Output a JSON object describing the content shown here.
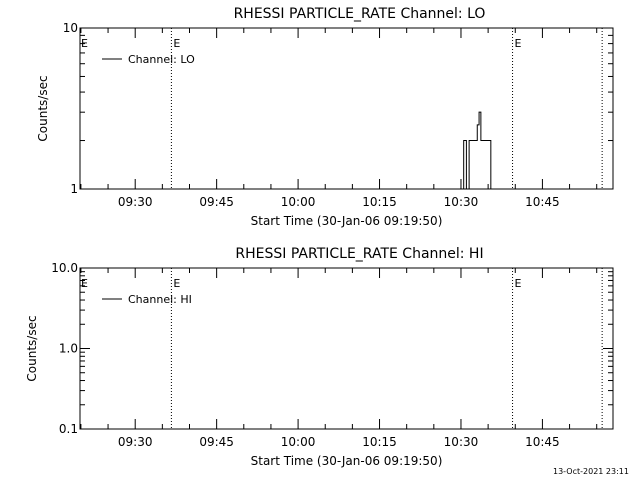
{
  "footer_timestamp": "13-Oct-2021 23:11",
  "colors": {
    "line": "#000000",
    "background": "#ffffff"
  },
  "chart_data": [
    {
      "type": "line",
      "title": "RHESSI PARTICLE_RATE Channel: LO",
      "xlabel": "Start Time (30-Jan-06 09:19:50)",
      "ylabel": "Counts/sec",
      "yscale": "log",
      "ylim": [
        1,
        10
      ],
      "xlim": [
        "09:19:50",
        "10:58:00"
      ],
      "x_ticks": [
        "09:30",
        "09:45",
        "10:00",
        "10:15",
        "10:30",
        "10:45"
      ],
      "y_ticks": [
        "1",
        "10"
      ],
      "legend": {
        "label": "Channel: LO",
        "position": "top-left"
      },
      "event_lines": [
        {
          "time": "09:36:40",
          "label": "E"
        },
        {
          "time": "10:39:30",
          "label": "E"
        },
        {
          "time": "10:56:00",
          "label": ""
        }
      ],
      "series": [
        {
          "name": "Channel: LO",
          "x": [
            "10:30:00",
            "10:30:30",
            "10:31:00",
            "10:31:30",
            "10:32:00",
            "10:32:30",
            "10:33:00",
            "10:33:20",
            "10:33:40",
            "10:34:00",
            "10:34:30",
            "10:35:00",
            "10:35:30",
            "10:36:00"
          ],
          "y": [
            1,
            2,
            1,
            2,
            2,
            2,
            2.5,
            3,
            2,
            2,
            2,
            2,
            1,
            1
          ]
        }
      ]
    },
    {
      "type": "line",
      "title": "RHESSI PARTICLE_RATE Channel: HI",
      "xlabel": "Start Time (30-Jan-06 09:19:50)",
      "ylabel": "Counts/sec",
      "yscale": "log",
      "ylim": [
        0.1,
        10
      ],
      "xlim": [
        "09:19:50",
        "10:58:00"
      ],
      "x_ticks": [
        "09:30",
        "09:45",
        "10:00",
        "10:15",
        "10:30",
        "10:45"
      ],
      "y_ticks": [
        "0.1",
        "1.0",
        "10.0"
      ],
      "legend": {
        "label": "Channel: HI",
        "position": "top-left"
      },
      "event_lines": [
        {
          "time": "09:36:40",
          "label": "E"
        },
        {
          "time": "10:39:30",
          "label": "E"
        },
        {
          "time": "10:56:00",
          "label": ""
        }
      ],
      "series": [
        {
          "name": "Channel: HI",
          "x": [],
          "y": []
        }
      ]
    }
  ]
}
